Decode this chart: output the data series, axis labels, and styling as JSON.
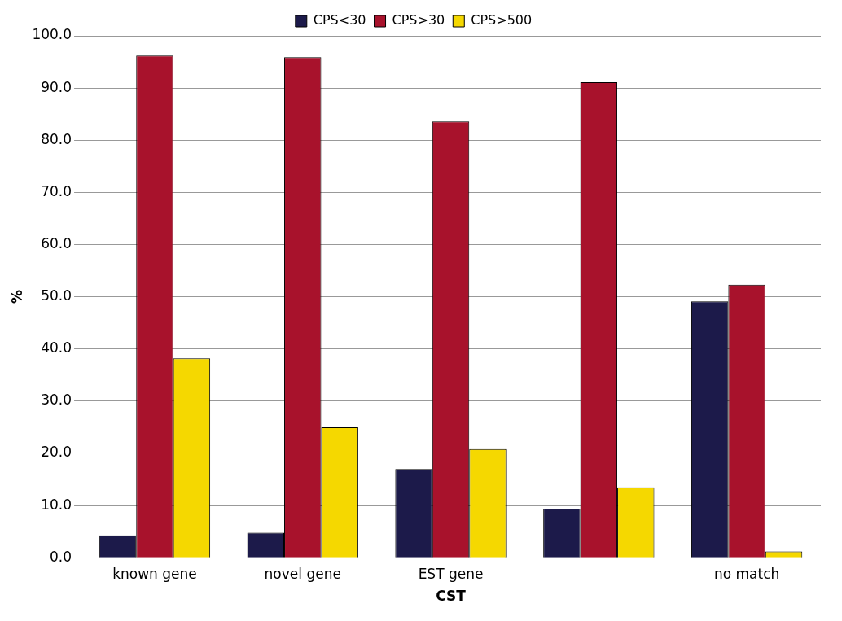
{
  "chart_data": {
    "type": "bar",
    "xlabel": "CST",
    "ylabel": "%",
    "categories": [
      "known gene",
      "novel gene",
      "EST gene",
      null,
      "no match"
    ],
    "series": [
      {
        "name": "CPS<30",
        "color": "#1c1a4a",
        "values": [
          4.3,
          4.8,
          17.0,
          9.4,
          49.1
        ]
      },
      {
        "name": "CPS>30",
        "color": "#a8122c",
        "values": [
          96.2,
          95.9,
          83.6,
          91.1,
          52.3
        ]
      },
      {
        "name": "CPS>500",
        "color": "#f5d800",
        "values": [
          38.2,
          25.0,
          20.8,
          13.5,
          1.2
        ]
      }
    ],
    "ylim": [
      0,
      100
    ],
    "yticks": [
      {
        "value": 0,
        "label": "0.0"
      },
      {
        "value": 10,
        "label": "10.0"
      },
      {
        "value": 20,
        "label": "20.0"
      },
      {
        "value": 30,
        "label": "30.0"
      },
      {
        "value": 40,
        "label": "40.0"
      },
      {
        "value": 50,
        "label": "50.0"
      },
      {
        "value": 60,
        "label": "60.0"
      },
      {
        "value": 70,
        "label": "70.0"
      },
      {
        "value": 80,
        "label": "80.0"
      },
      {
        "value": 90,
        "label": "90.0"
      },
      {
        "value": 100,
        "label": "100.0"
      }
    ],
    "grid": "y",
    "legend": "top"
  }
}
